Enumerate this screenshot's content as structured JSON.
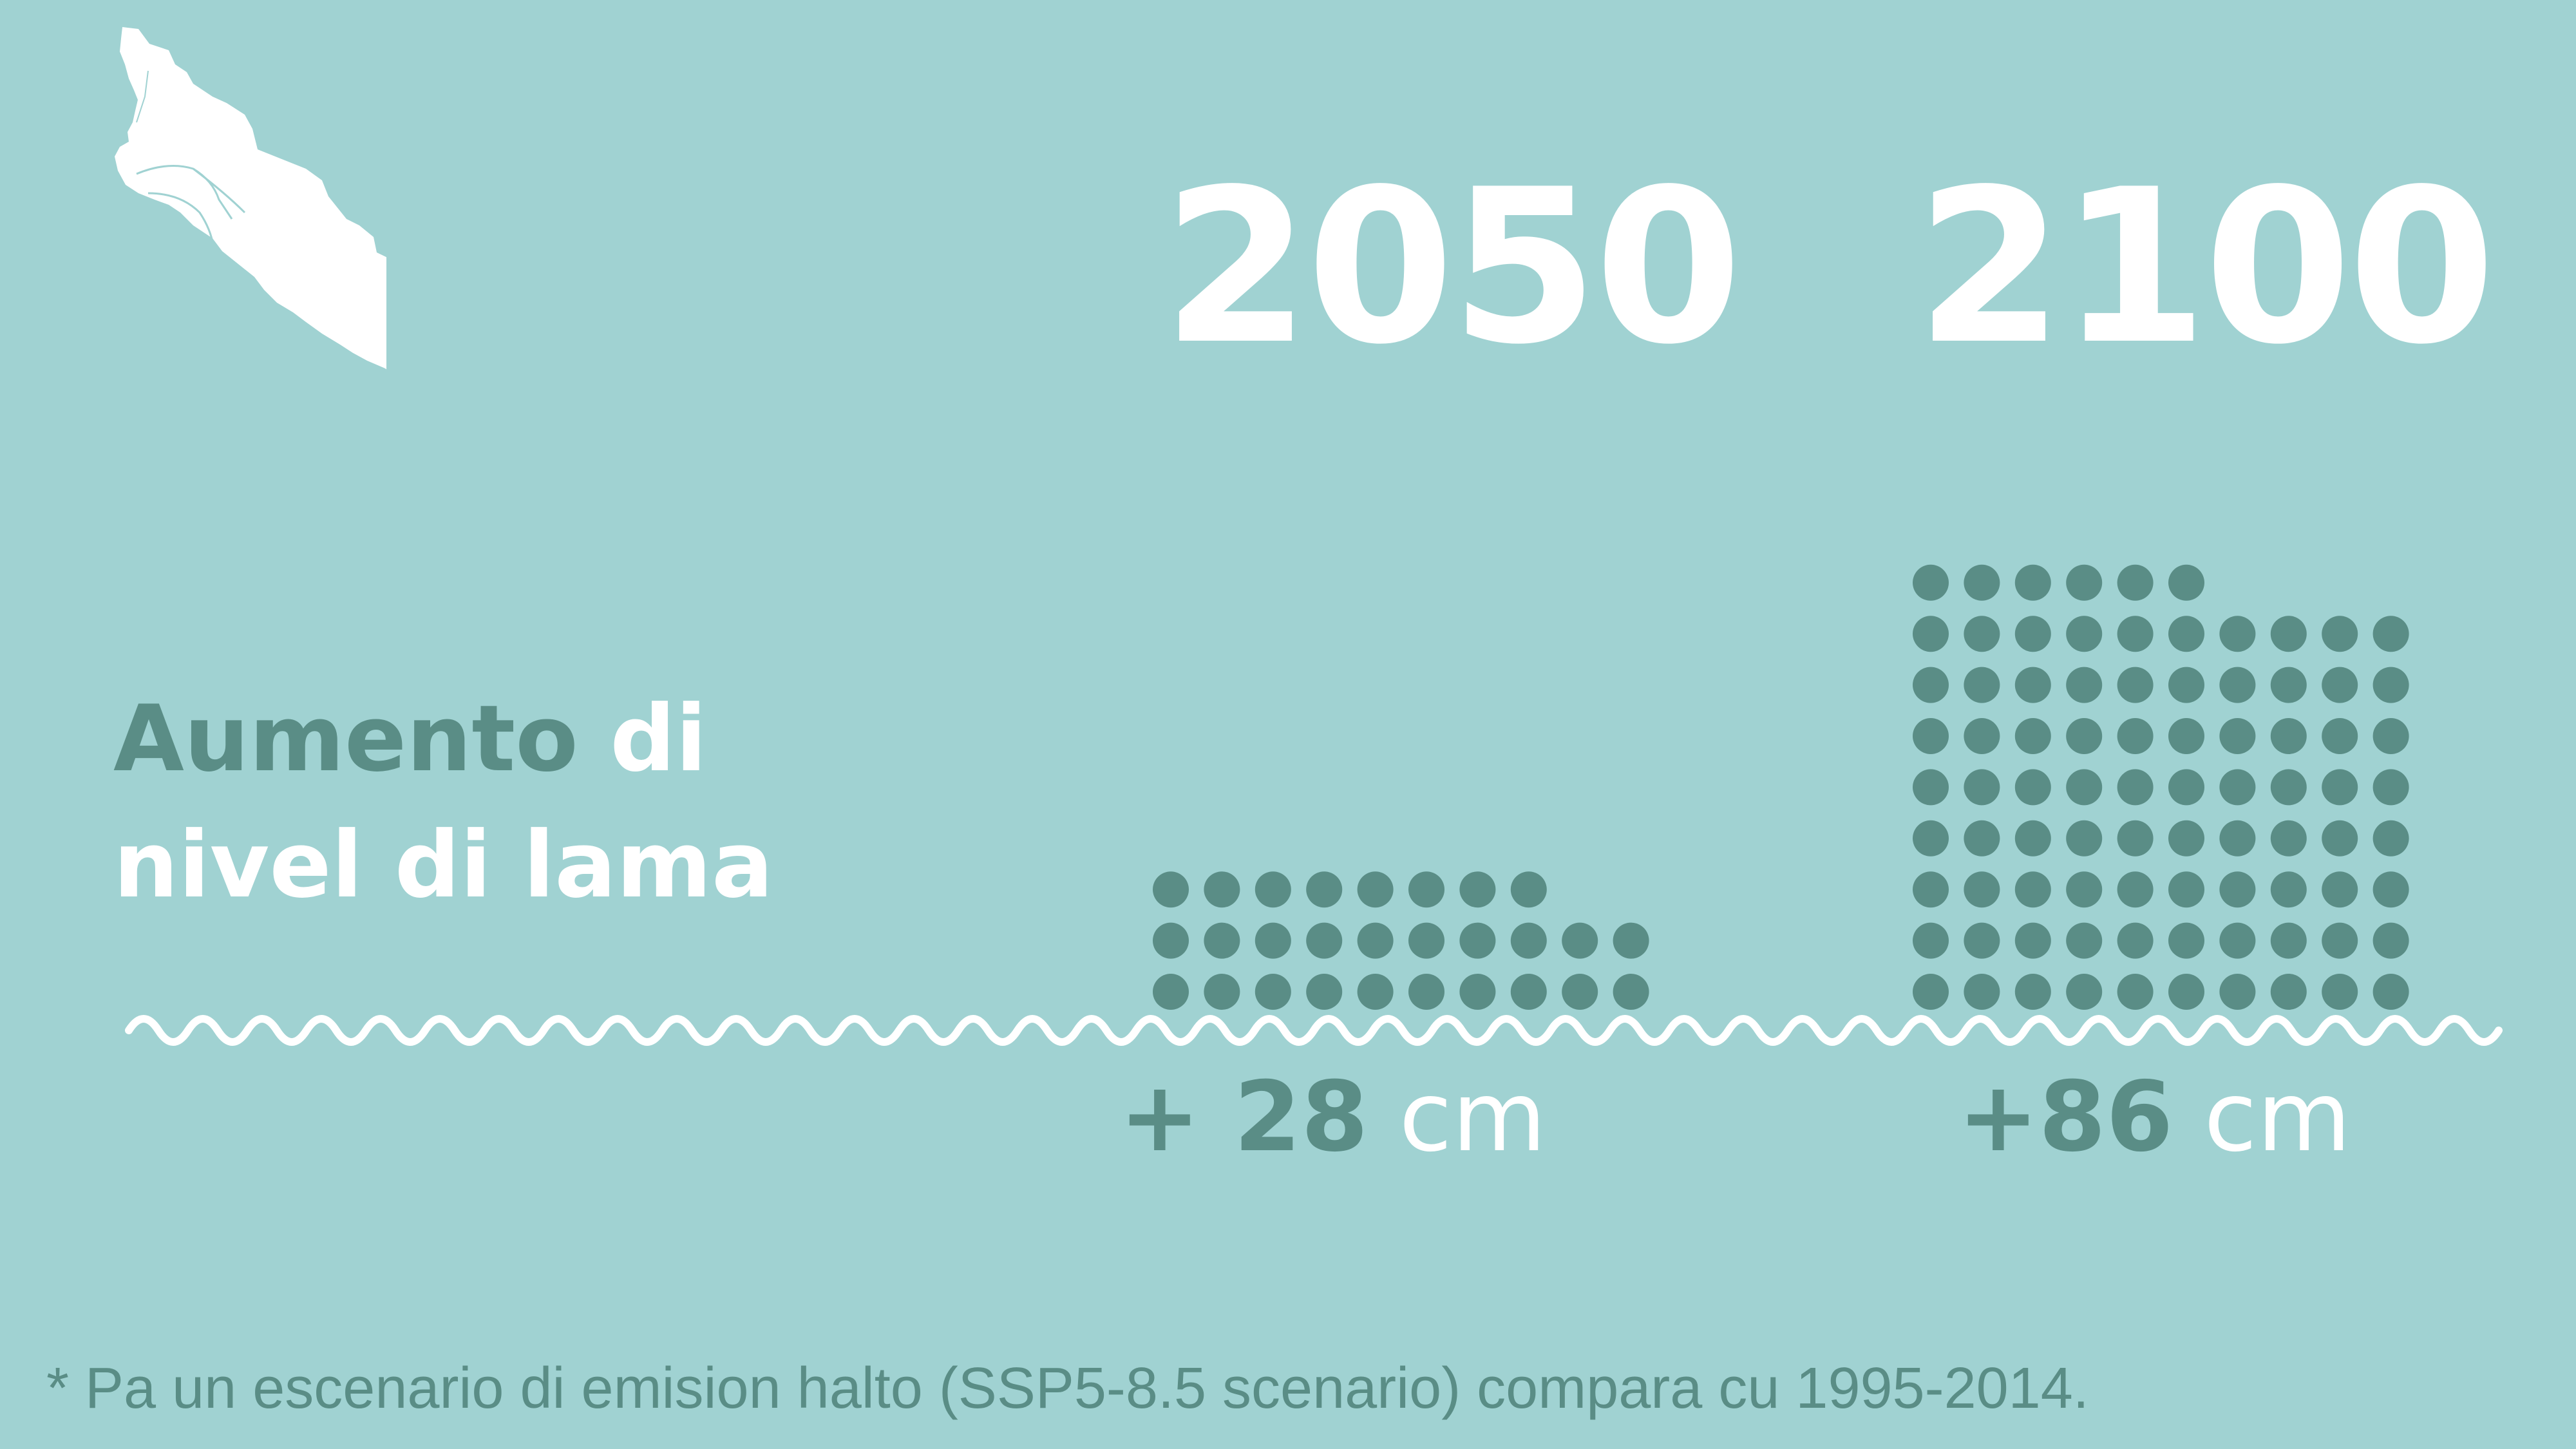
{
  "headline": {
    "line1_dark": "Aumento",
    "line1_light": " di",
    "line2": "nivel di lama"
  },
  "footnote": "* Pa un escenario di emision halto (SSP5-8.5 scenario) compara cu 1995-2014.",
  "colors": {
    "background": "#a0d2d2",
    "dots": "#5a8d86",
    "white": "#ffffff"
  },
  "icons": {
    "map": "aruba-island-map-icon",
    "wave": "wave-line"
  },
  "chart_data": {
    "type": "pictogram",
    "unit": "cm",
    "categories": [
      "2050",
      "2100"
    ],
    "values": [
      28,
      86
    ],
    "value_labels": [
      {
        "num": "+ 28",
        "unit": " cm"
      },
      {
        "num": "+86",
        "unit": " cm"
      }
    ]
  }
}
